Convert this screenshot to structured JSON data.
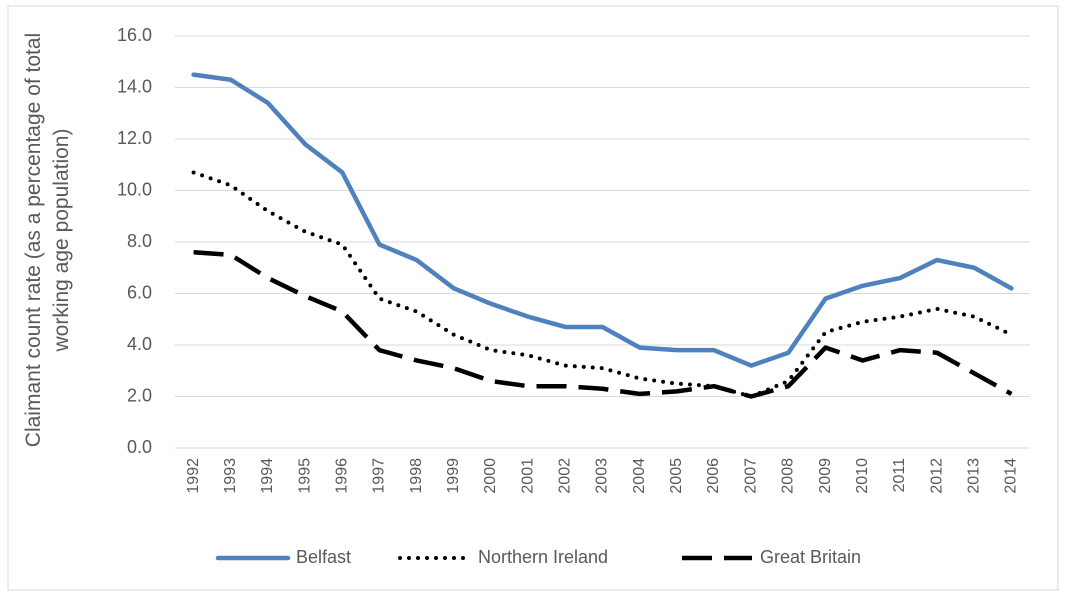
{
  "chart_data": {
    "type": "line",
    "ylabel": "Claimant count rate (as a percentage of total working age population)",
    "categories": [
      "1992",
      "1993",
      "1994",
      "1995",
      "1996",
      "1997",
      "1998",
      "1999",
      "2000",
      "2001",
      "2002",
      "2003",
      "2004",
      "2005",
      "2006",
      "2007",
      "2008",
      "2009",
      "2010",
      "2011",
      "2012",
      "2013",
      "2014"
    ],
    "series": [
      {
        "name": "Belfast",
        "color": "#4f81bd",
        "dash": "solid",
        "values": [
          14.5,
          14.3,
          13.4,
          11.8,
          10.7,
          7.9,
          7.3,
          6.2,
          5.6,
          5.1,
          4.7,
          4.7,
          3.9,
          3.8,
          3.8,
          3.2,
          3.7,
          5.8,
          6.3,
          6.6,
          7.3,
          7.0,
          6.2
        ]
      },
      {
        "name": "Northern Ireland",
        "color": "#000000",
        "dash": "dotted",
        "values": [
          10.7,
          10.2,
          9.2,
          8.4,
          7.9,
          5.8,
          5.3,
          4.4,
          3.8,
          3.6,
          3.2,
          3.1,
          2.7,
          2.5,
          2.4,
          2.0,
          2.6,
          4.5,
          4.9,
          5.1,
          5.4,
          5.1,
          4.4
        ]
      },
      {
        "name": "Great Britain",
        "color": "#000000",
        "dash": "dashed",
        "values": [
          7.6,
          7.5,
          6.6,
          5.9,
          5.3,
          3.8,
          3.4,
          3.1,
          2.6,
          2.4,
          2.4,
          2.3,
          2.1,
          2.2,
          2.4,
          2.0,
          2.4,
          3.9,
          3.4,
          3.8,
          3.7,
          2.9,
          2.1
        ]
      }
    ],
    "ylim": [
      0,
      16
    ],
    "yticks": [
      {
        "value": 0,
        "label": "0.0"
      },
      {
        "value": 2,
        "label": "2.0"
      },
      {
        "value": 4,
        "label": "4.0"
      },
      {
        "value": 6,
        "label": "6.0"
      },
      {
        "value": 8,
        "label": "8.0"
      },
      {
        "value": 10,
        "label": "10.0"
      },
      {
        "value": 12,
        "label": "12.0"
      },
      {
        "value": 14,
        "label": "14.0"
      },
      {
        "value": 16,
        "label": "16.0"
      }
    ],
    "grid": true,
    "legend": "bottom"
  }
}
